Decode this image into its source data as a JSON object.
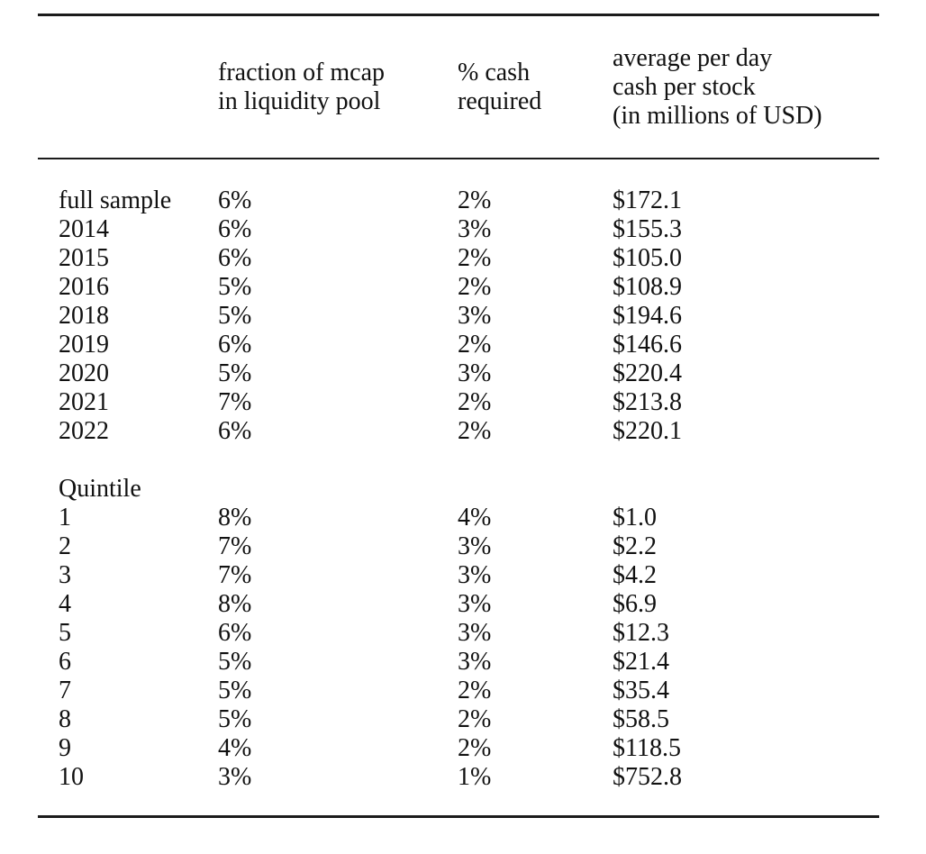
{
  "table": {
    "header": {
      "col_label": "",
      "col_fraction": "fraction of mcap\nin liquidity pool",
      "col_cash": "% cash\nrequired",
      "col_avg": "average per day\ncash per stock\n(in millions of USD)"
    },
    "sample_rows": [
      {
        "label": "full sample",
        "fraction": "6%",
        "cash": "2%",
        "avg": "$172.1"
      },
      {
        "label": "2014",
        "fraction": "6%",
        "cash": "3%",
        "avg": "$155.3"
      },
      {
        "label": "2015",
        "fraction": "6%",
        "cash": "2%",
        "avg": "$105.0"
      },
      {
        "label": "2016",
        "fraction": "5%",
        "cash": "2%",
        "avg": "$108.9"
      },
      {
        "label": "2018",
        "fraction": "5%",
        "cash": "3%",
        "avg": "$194.6"
      },
      {
        "label": "2019",
        "fraction": "6%",
        "cash": "2%",
        "avg": "$146.6"
      },
      {
        "label": "2020",
        "fraction": "5%",
        "cash": "3%",
        "avg": "$220.4"
      },
      {
        "label": "2021",
        "fraction": "7%",
        "cash": "2%",
        "avg": "$213.8"
      },
      {
        "label": "2022",
        "fraction": "6%",
        "cash": "2%",
        "avg": "$220.1"
      }
    ],
    "section_label": "Quintile",
    "quintile_rows": [
      {
        "label": "1",
        "fraction": "8%",
        "cash": "4%",
        "avg": "$1.0"
      },
      {
        "label": "2",
        "fraction": "7%",
        "cash": "3%",
        "avg": "$2.2"
      },
      {
        "label": "3",
        "fraction": "7%",
        "cash": "3%",
        "avg": "$4.2"
      },
      {
        "label": "4",
        "fraction": "8%",
        "cash": "3%",
        "avg": "$6.9"
      },
      {
        "label": "5",
        "fraction": "6%",
        "cash": "3%",
        "avg": "$12.3"
      },
      {
        "label": "6",
        "fraction": "5%",
        "cash": "3%",
        "avg": "$21.4"
      },
      {
        "label": "7",
        "fraction": "5%",
        "cash": "2%",
        "avg": "$35.4"
      },
      {
        "label": "8",
        "fraction": "5%",
        "cash": "2%",
        "avg": "$58.5"
      },
      {
        "label": "9",
        "fraction": "4%",
        "cash": "2%",
        "avg": "$118.5"
      },
      {
        "label": "10",
        "fraction": "3%",
        "cash": "1%",
        "avg": "$752.8"
      }
    ],
    "rule_color": "#1b1b1b"
  }
}
